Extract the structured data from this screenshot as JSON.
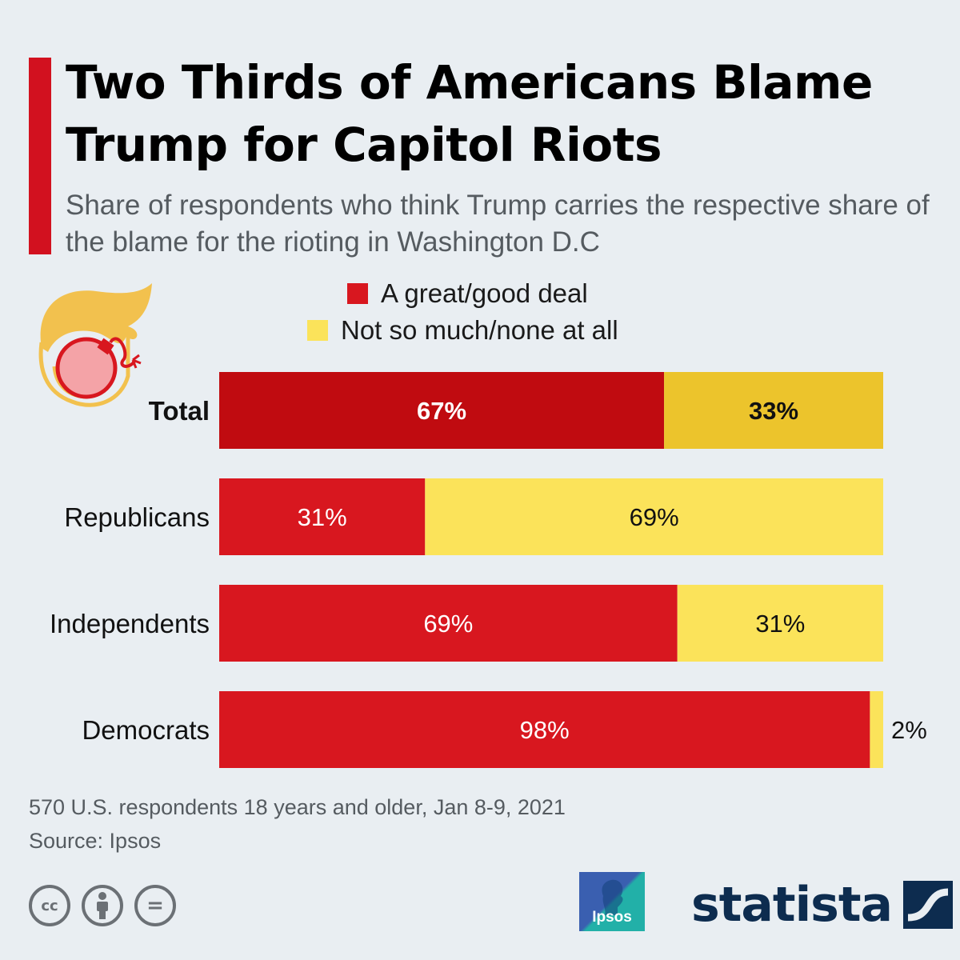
{
  "header": {
    "title": "Two Thirds of Americans Blame Trump for Capitol Riots",
    "subtitle": "Share of respondents who think Trump carries the respective share of the blame for the rioting in Washington D.C"
  },
  "chart_data": {
    "type": "bar",
    "orientation": "horizontal",
    "stacked": true,
    "categories": [
      "Total",
      "Republicans",
      "Independents",
      "Democrats"
    ],
    "series": [
      {
        "name": "A great/good deal",
        "values": [
          67,
          31,
          69,
          98
        ],
        "labels": [
          "67%",
          "31%",
          "69%",
          "98%"
        ]
      },
      {
        "name": "Not so much/none at all",
        "values": [
          33,
          69,
          31,
          2
        ],
        "labels": [
          "33%",
          "69%",
          "31%",
          "2%"
        ]
      }
    ],
    "unit": "%",
    "xlim": [
      0,
      100
    ],
    "grid": false,
    "legend_position": "top-center",
    "highlighted_category": "Total"
  },
  "colors": {
    "great_deal": "#d8171f",
    "great_deal_total": "#c00b10",
    "not_much": "#fbe35a",
    "not_much_total": "#ecc42c",
    "background": "#e9eef2",
    "accent": "#d2111f"
  },
  "footer": {
    "note": "570 U.S. respondents 18 years and older, Jan 8-9, 2021",
    "source": "Source: Ipsos",
    "license_icons": [
      "cc-icon",
      "attribution-icon",
      "no-derivatives-icon"
    ],
    "license_symbols": [
      "cc",
      "="
    ],
    "ipsos_logo": "Ipsos",
    "brand": "statista"
  }
}
